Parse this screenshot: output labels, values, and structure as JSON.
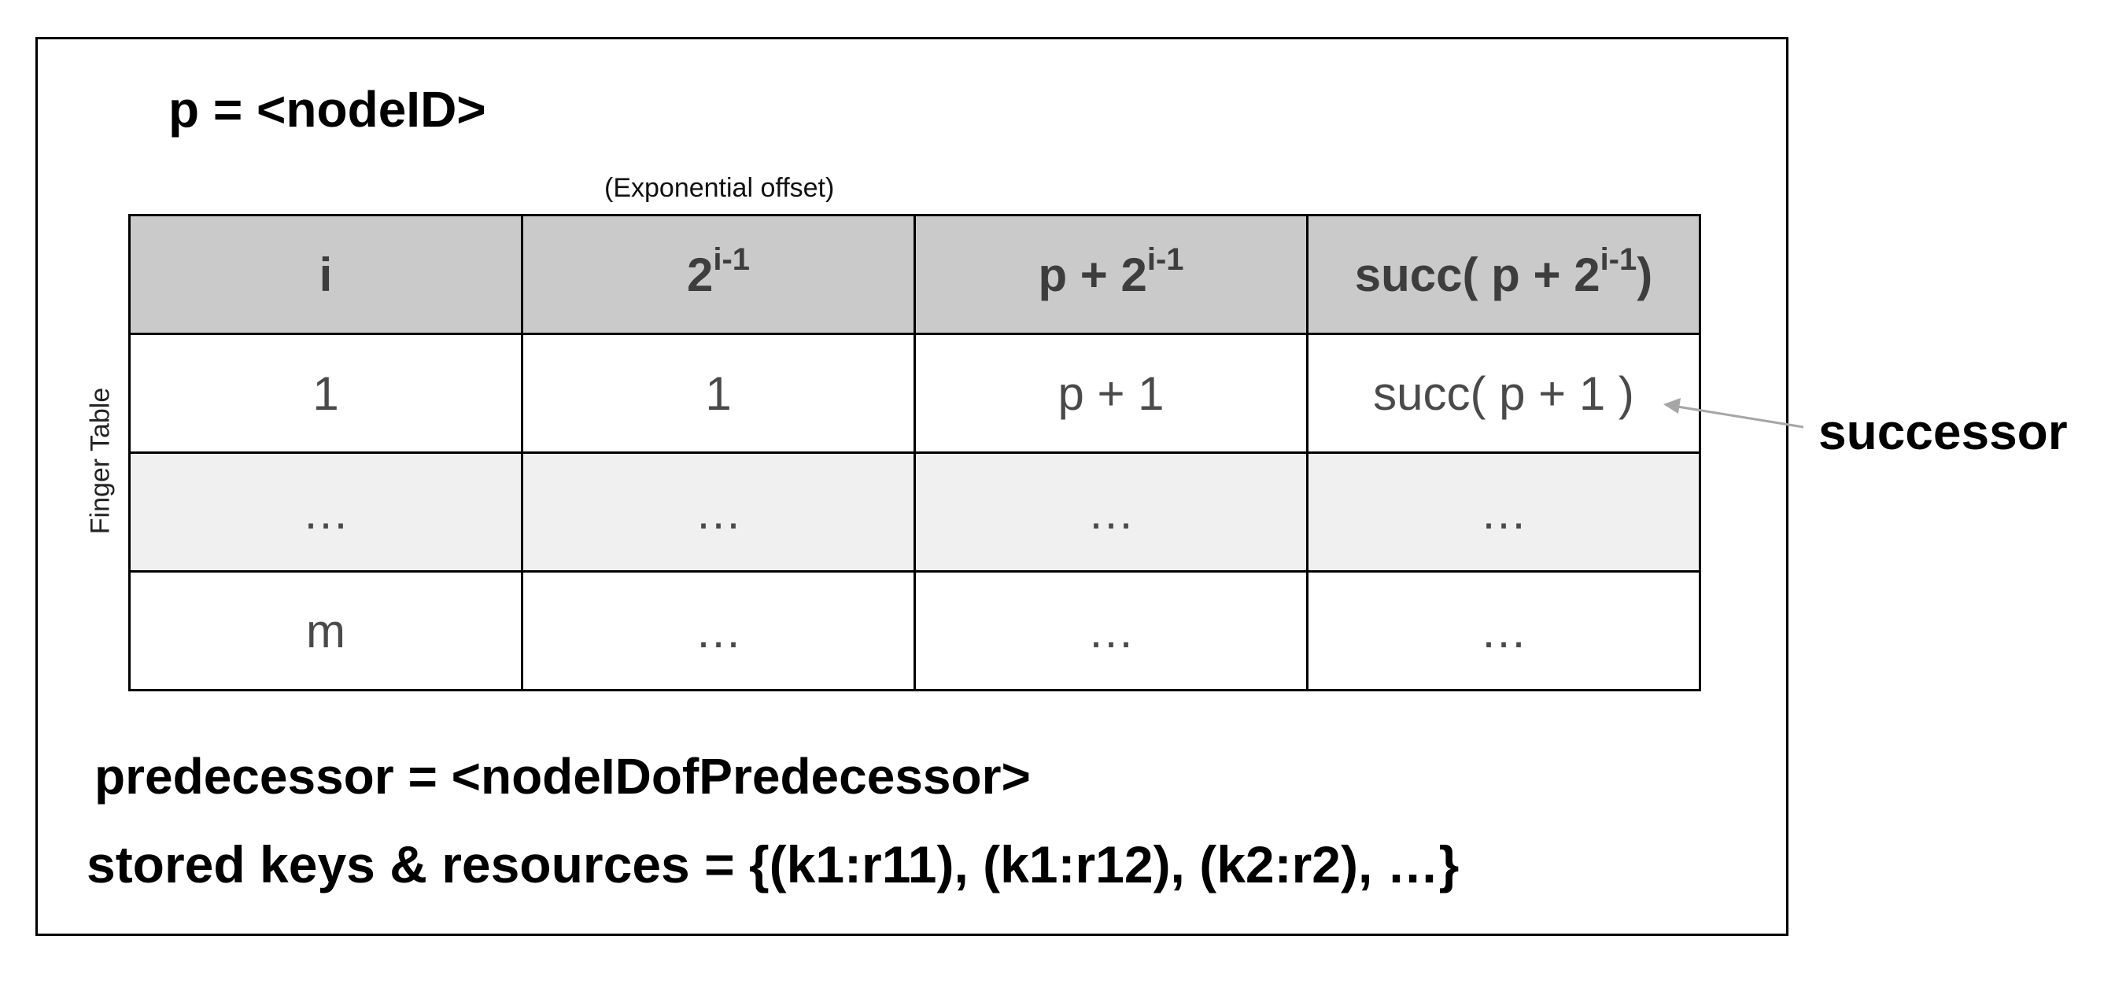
{
  "node_line": "p = <nodeID>",
  "offset_note": "(Exponential offset)",
  "finger_table_label": "Finger Table",
  "table": {
    "headers": [
      {
        "base": "i",
        "sup": "",
        "tail": ""
      },
      {
        "base": "2",
        "sup": "i-1",
        "tail": ""
      },
      {
        "base": "p + 2",
        "sup": "i-1",
        "tail": ""
      },
      {
        "base": "succ( p + 2",
        "sup": "i-1",
        "tail": ")"
      }
    ],
    "rows": [
      [
        "1",
        "1",
        "p + 1",
        "succ( p + 1 )"
      ],
      [
        "…",
        "…",
        "…",
        "…"
      ],
      [
        "m",
        "…",
        "…",
        "…"
      ]
    ]
  },
  "successor_label": "successor",
  "predecessor_line": "predecessor = <nodeIDofPredecessor>",
  "stored_line": "stored keys & resources = {(k1:r11), (k1:r12), (k2:r2), …}",
  "colors": {
    "header_fill": "#cacaca",
    "shaded_row_fill": "#f0f0f0",
    "arrow": "#a6a6a6"
  }
}
